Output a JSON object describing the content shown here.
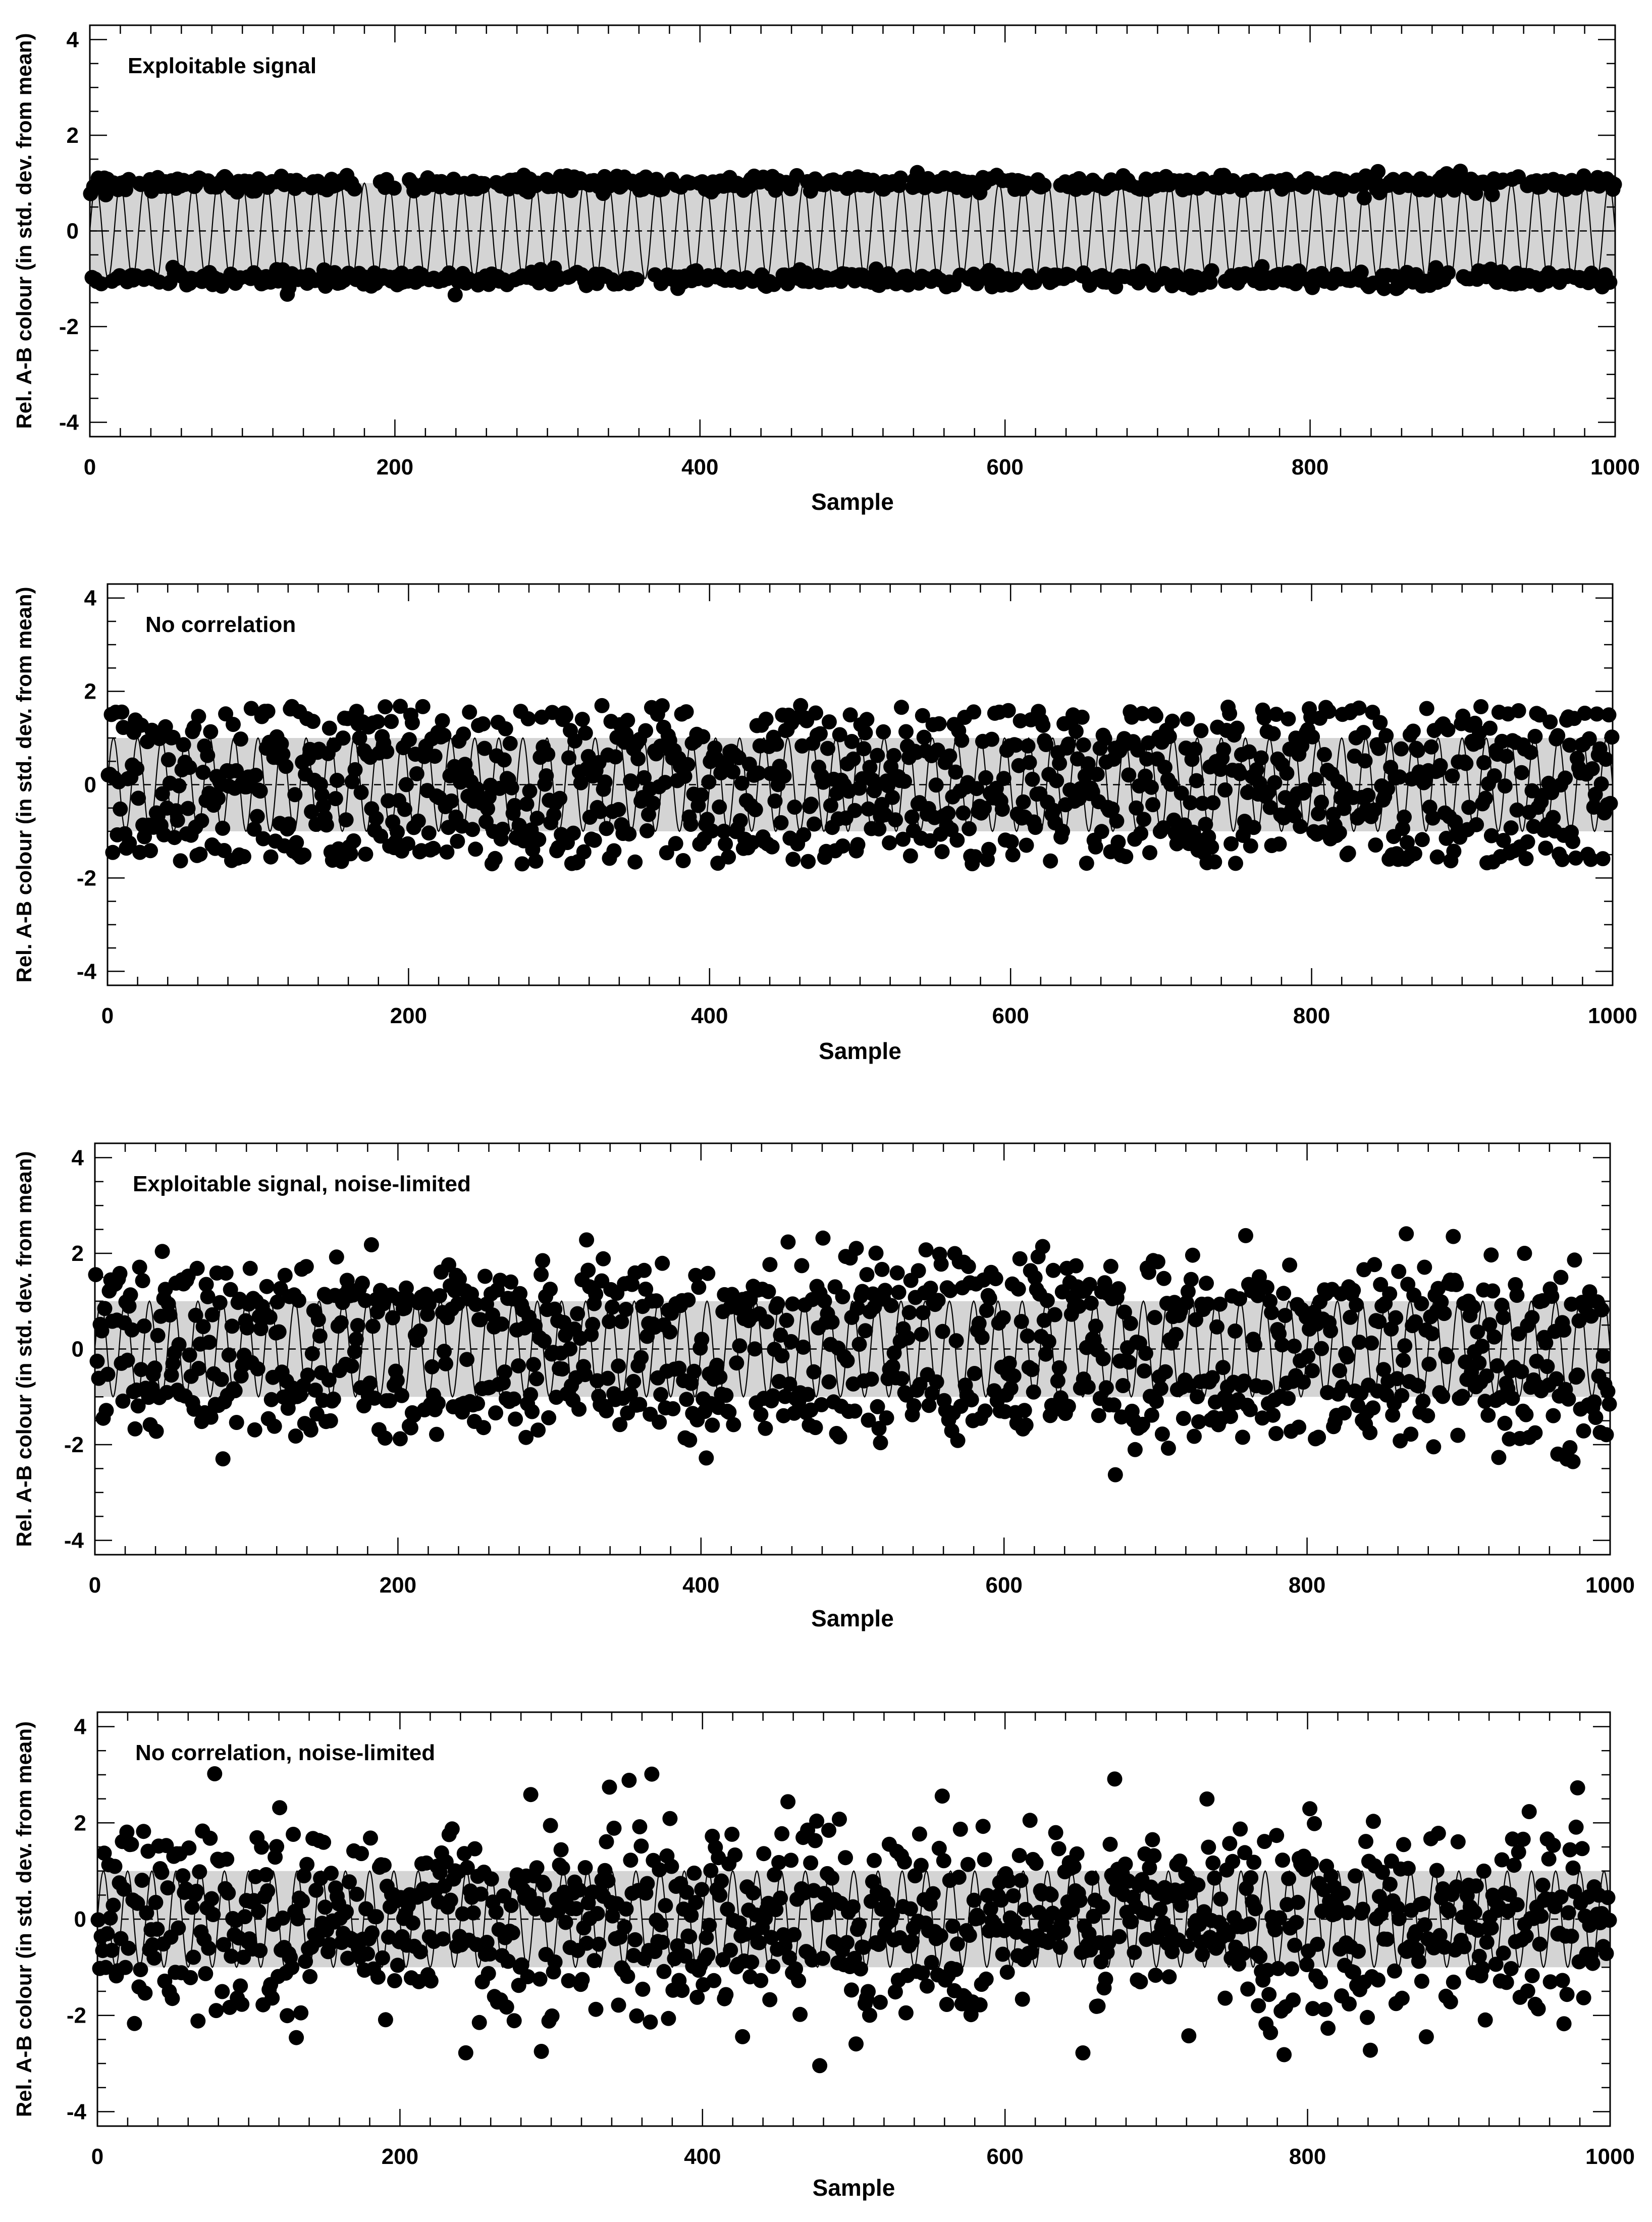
{
  "chart_data": [
    {
      "type": "scatter",
      "title": "",
      "annotation": "Exploitable signal",
      "xlabel": "Sample",
      "ylabel": "Rel. A-B colour (in std. dev. from mean)",
      "xlim": [
        0,
        1000
      ],
      "ylim": [
        -4.3,
        4.3
      ],
      "x_ticks": [
        "0",
        "200",
        "400",
        "600",
        "800",
        "1000"
      ],
      "y_ticks": [
        "4",
        "2",
        "0",
        "-2",
        "-4"
      ],
      "band": [
        -1,
        1
      ],
      "reference_line": 0,
      "series": [
        {
          "kind": "sinusoid",
          "period_samples": 16,
          "amplitude": 1
        },
        {
          "kind": "points",
          "n": 1000,
          "distribution": "+/-1 with scatter 0.08"
        }
      ]
    },
    {
      "type": "scatter",
      "title": "",
      "annotation": "No correlation",
      "xlabel": "Sample",
      "ylabel": "Rel. A-B colour (in std. dev. from mean)",
      "xlim": [
        0,
        1000
      ],
      "ylim": [
        -4.3,
        4.3
      ],
      "x_ticks": [
        "0",
        "200",
        "400",
        "600",
        "800",
        "1000"
      ],
      "y_ticks": [
        "4",
        "2",
        "0",
        "-2",
        "-4"
      ],
      "band": [
        -1,
        1
      ],
      "reference_line": 0,
      "series": [
        {
          "kind": "sinusoid",
          "period_samples": 16,
          "amplitude": 1
        },
        {
          "kind": "points",
          "n": 1000,
          "distribution": "uniform -1.7 to 1.7"
        }
      ]
    },
    {
      "type": "scatter",
      "title": "",
      "annotation": "Exploitable signal, noise-limited",
      "xlabel": "Sample",
      "ylabel": "Rel. A-B colour (in std. dev. from mean)",
      "xlim": [
        0,
        1000
      ],
      "ylim": [
        -4.3,
        4.3
      ],
      "x_ticks": [
        "0",
        "200",
        "400",
        "600",
        "800",
        "1000"
      ],
      "y_ticks": [
        "4",
        "2",
        "0",
        "-2",
        "-4"
      ],
      "band": [
        -1,
        1
      ],
      "reference_line": 0,
      "series": [
        {
          "kind": "sinusoid",
          "period_samples": 16,
          "amplitude": 1
        },
        {
          "kind": "points",
          "n": 1000,
          "distribution": "+/-1 plus gaussian noise sigma 0.55"
        }
      ]
    },
    {
      "type": "scatter",
      "title": "",
      "annotation": "No correlation, noise-limited",
      "xlabel": "Sample",
      "ylabel": "Rel. A-B colour (in std. dev. from mean)",
      "xlim": [
        0,
        1000
      ],
      "ylim": [
        -4.3,
        4.3
      ],
      "x_ticks": [
        "0",
        "200",
        "400",
        "600",
        "800",
        "1000"
      ],
      "y_ticks": [
        "4",
        "2",
        "0",
        "-2",
        "-4"
      ],
      "band": [
        -1,
        1
      ],
      "reference_line": 0,
      "series": [
        {
          "kind": "sinusoid",
          "period_samples": 16,
          "amplitude": 1
        },
        {
          "kind": "points",
          "n": 1000,
          "distribution": "gaussian mean 0 sigma 1.05"
        }
      ]
    }
  ],
  "colors": {
    "band": "#d4d4d4",
    "points": "#000000",
    "axes": "#000000",
    "background": "#ffffff"
  }
}
